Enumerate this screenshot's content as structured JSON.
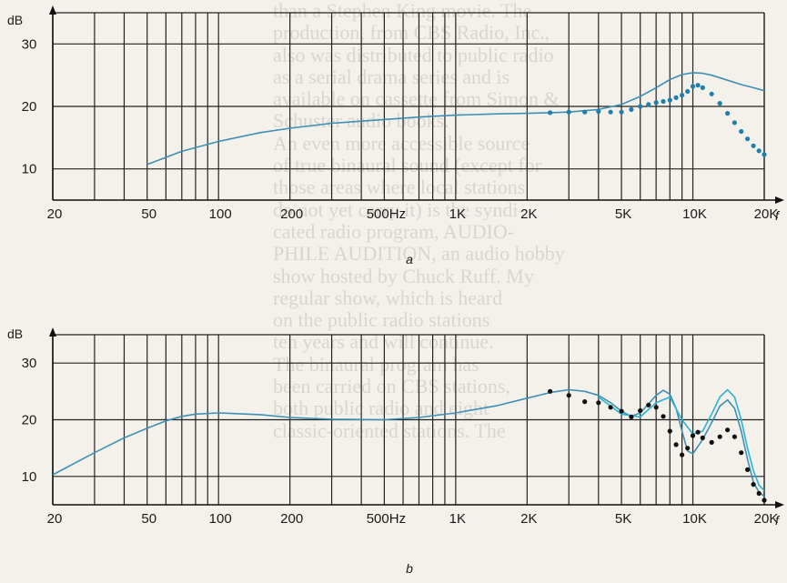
{
  "background_text": [
    "than a Stephen King movie. The",
    "production, from CBS Radio, Inc.,",
    "also was distributed to public radio",
    "as a serial drama series and is",
    "available on cassette from Simon &",
    "Schuster audio books.",
    "",
    "An even more accessible source",
    "of true binaural sound (except for",
    "those areas where local stations",
    "do not yet carry it) is the syndi-",
    "cated radio program, AUDIO-",
    "PHILE AUDITION, an audio hobby",
    "show hosted by Chuck Ruff. My",
    "regular show, which is heard",
    "on the public radio stations",
    "ten years and will continue.",
    "The binaural program has",
    "been carried on CBS stations,",
    "both public radio and eight",
    "classic-oriented stations. The"
  ],
  "chart_data": [
    {
      "type": "line",
      "caption": "a",
      "ylabel": "dB",
      "xlabel": "f",
      "x_scale": "log",
      "xlim": [
        20,
        20000
      ],
      "ylim": [
        5,
        35
      ],
      "x_ticks": [
        {
          "value": 20,
          "label": "20"
        },
        {
          "value": 50,
          "label": "50"
        },
        {
          "value": 100,
          "label": "100"
        },
        {
          "value": 200,
          "label": "200"
        },
        {
          "value": 500,
          "label": "500Hz"
        },
        {
          "value": 1000,
          "label": "1K"
        },
        {
          "value": 2000,
          "label": "2K"
        },
        {
          "value": 5000,
          "label": "5K"
        },
        {
          "value": 10000,
          "label": "10K"
        },
        {
          "value": 20000,
          "label": "20K"
        }
      ],
      "y_ticks": [
        {
          "value": 10,
          "label": "10"
        },
        {
          "value": 20,
          "label": "20"
        },
        {
          "value": 30,
          "label": "30"
        }
      ],
      "grid": true,
      "series": [
        {
          "style": "solid",
          "color": "#3f8fb5",
          "x": [
            50,
            70,
            100,
            150,
            200,
            300,
            500,
            700,
            1000,
            1500,
            2000,
            2500,
            3000,
            4000,
            5000,
            6000,
            7000,
            8000,
            9000,
            10000,
            11000,
            12000,
            14000,
            16000,
            18000,
            20000
          ],
          "y": [
            10.7,
            12.8,
            14.4,
            15.8,
            16.5,
            17.3,
            17.9,
            18.3,
            18.6,
            18.8,
            18.9,
            19.0,
            19.1,
            19.5,
            20.3,
            21.6,
            23.0,
            24.3,
            25.1,
            25.4,
            25.3,
            25.0,
            24.2,
            23.5,
            23.0,
            22.5
          ]
        },
        {
          "style": "dotted",
          "color": "#1f7fae",
          "x": [
            2500,
            3000,
            3500,
            4000,
            4500,
            5000,
            5500,
            6000,
            6500,
            7000,
            7500,
            8000,
            8500,
            9000,
            9500,
            10000,
            10500,
            11000,
            12000,
            13000,
            14000,
            15000,
            16000,
            17000,
            18000,
            19000,
            20000
          ],
          "y": [
            19.0,
            19.1,
            19.1,
            19.2,
            19.1,
            19.1,
            19.5,
            20.0,
            20.3,
            20.6,
            20.8,
            21.0,
            21.4,
            21.8,
            22.4,
            23.2,
            23.4,
            23.0,
            22.0,
            20.5,
            18.9,
            17.4,
            16.0,
            14.8,
            13.7,
            12.9,
            12.3
          ]
        }
      ]
    },
    {
      "type": "line",
      "caption": "b",
      "ylabel": "dB",
      "xlabel": "f",
      "x_scale": "log",
      "xlim": [
        20,
        20000
      ],
      "ylim": [
        5,
        35
      ],
      "x_ticks": [
        {
          "value": 20,
          "label": "20"
        },
        {
          "value": 50,
          "label": "50"
        },
        {
          "value": 100,
          "label": "100"
        },
        {
          "value": 200,
          "label": "200"
        },
        {
          "value": 500,
          "label": "500Hz"
        },
        {
          "value": 1000,
          "label": "1K"
        },
        {
          "value": 2000,
          "label": "2K"
        },
        {
          "value": 5000,
          "label": "5K"
        },
        {
          "value": 10000,
          "label": "10K"
        },
        {
          "value": 20000,
          "label": "20K"
        }
      ],
      "y_ticks": [
        {
          "value": 10,
          "label": "10"
        },
        {
          "value": 20,
          "label": "20"
        },
        {
          "value": 30,
          "label": "30"
        }
      ],
      "grid": true,
      "series": [
        {
          "style": "solid",
          "color": "#3f8fb5",
          "x": [
            20,
            30,
            40,
            50,
            60,
            70,
            80,
            100,
            150,
            200,
            300,
            500,
            700,
            1000,
            1500,
            2000,
            2500,
            3000,
            3500,
            4000,
            4500,
            5000,
            5500,
            6000,
            6500,
            7000,
            7500,
            8000,
            8500,
            9000,
            9500,
            10000,
            11000,
            12000,
            13000,
            14000,
            15000,
            16000,
            17000,
            18000,
            19000,
            20000
          ],
          "y": [
            10.3,
            14.2,
            16.8,
            18.5,
            19.8,
            20.6,
            21.0,
            21.2,
            20.9,
            20.4,
            20.1,
            20.0,
            20.4,
            21.2,
            22.5,
            23.8,
            24.8,
            25.3,
            25.0,
            24.3,
            23.0,
            21.5,
            20.6,
            21.2,
            22.8,
            24.3,
            25.2,
            24.5,
            22.0,
            18.0,
            14.5,
            14.0,
            16.5,
            19.5,
            22.4,
            23.5,
            22.0,
            18.0,
            13.0,
            9.0,
            7.2,
            6.5
          ]
        },
        {
          "style": "solid",
          "color": "#2ab3d2",
          "x": [
            4000,
            5000,
            6000,
            7000,
            8000,
            9000,
            10000,
            11000,
            12000,
            13000,
            14000,
            15000,
            16000,
            17000,
            18000,
            19000,
            20000
          ],
          "y": [
            24.0,
            21.0,
            20.5,
            23.0,
            24.0,
            20.0,
            17.5,
            18.0,
            21.0,
            24.0,
            25.3,
            24.0,
            20.0,
            15.0,
            11.0,
            8.5,
            7.5
          ]
        },
        {
          "style": "dotted",
          "color": "#111111",
          "x": [
            2500,
            3000,
            3500,
            4000,
            4500,
            5000,
            5500,
            6000,
            6500,
            7000,
            7500,
            8000,
            8500,
            9000,
            9500,
            10000,
            10500,
            11000,
            12000,
            13000,
            14000,
            15000,
            16000,
            17000,
            18000,
            19000,
            20000
          ],
          "y": [
            25.0,
            24.3,
            23.2,
            23.0,
            22.2,
            21.5,
            20.5,
            21.6,
            22.6,
            22.2,
            20.6,
            18.0,
            15.6,
            13.8,
            15.0,
            17.2,
            17.8,
            16.8,
            16.0,
            17.0,
            18.2,
            17.0,
            14.2,
            11.2,
            8.6,
            7.0,
            5.8
          ]
        }
      ]
    }
  ]
}
